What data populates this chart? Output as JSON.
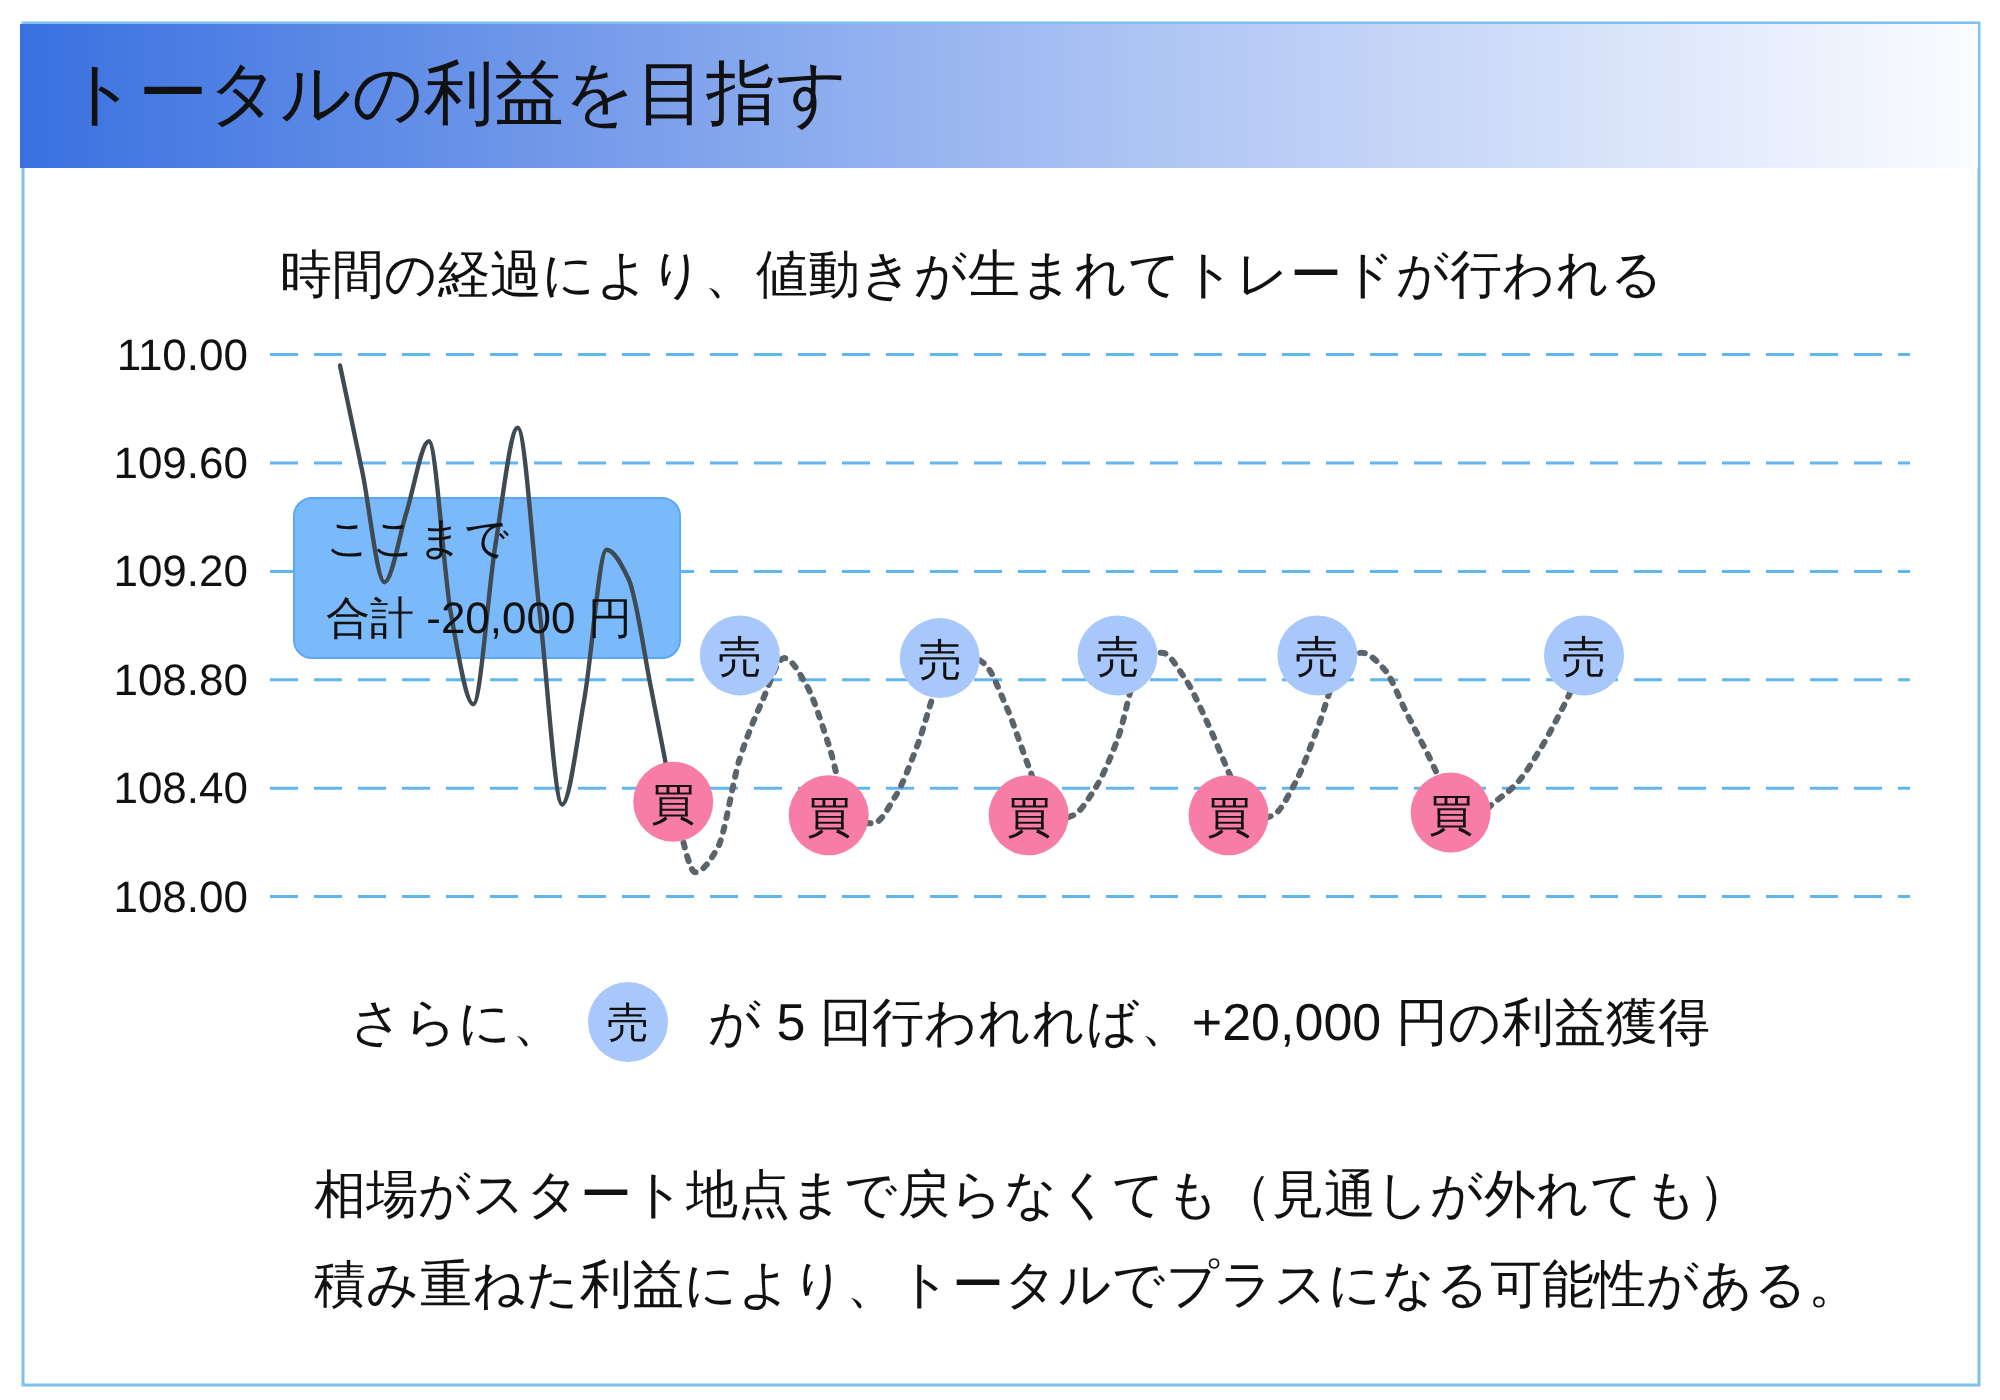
{
  "chart_data": {
    "type": "line",
    "title": "トータルの利益を目指す",
    "subtitle": "時間の経過により、値動きが生まれてトレードが行われる",
    "categories": [
      null,
      null,
      null,
      null,
      null,
      null,
      null,
      null,
      null,
      null,
      null,
      null,
      null,
      null,
      null,
      null,
      null,
      null,
      null,
      null,
      null,
      null,
      null,
      null,
      null,
      null,
      null,
      null,
      null,
      null,
      null,
      null,
      null,
      null,
      null,
      null,
      null,
      null,
      null,
      null,
      null,
      null,
      null,
      null,
      null,
      null,
      null,
      null,
      null,
      null,
      null,
      null,
      null,
      null,
      null,
      null,
      null
    ],
    "ylim": [
      108,
      110
    ],
    "yticks": [
      {
        "value": 108,
        "label": "108.00"
      },
      {
        "value": 108.4,
        "label": "108.40"
      },
      {
        "value": 108.8,
        "label": "108.80"
      },
      {
        "value": 109.2,
        "label": "109.20"
      },
      {
        "value": 109.6,
        "label": "109.60"
      },
      {
        "value": 110,
        "label": "110.00"
      }
    ],
    "grid": "y",
    "series": [
      {
        "line_style": "solid",
        "color": "#3f4a52",
        "values": [
          109.96,
          109.57,
          109.16,
          109.42,
          109.68,
          109.04,
          108.71,
          109.3,
          109.73,
          109.04,
          108.34,
          108.73,
          109.28,
          109.17,
          108.77,
          108.35,
          null,
          null,
          null,
          null,
          null,
          null,
          null,
          null,
          null,
          null,
          null,
          null,
          null,
          null,
          null,
          null,
          null,
          null,
          null,
          null,
          null,
          null,
          null,
          null,
          null,
          null,
          null,
          null,
          null,
          null,
          null,
          null,
          null,
          null,
          null,
          null,
          null,
          null,
          null,
          null,
          null
        ]
      },
      {
        "line_style": "dotted",
        "color": "#5b636b",
        "values": [
          null,
          null,
          null,
          null,
          null,
          null,
          null,
          null,
          null,
          null,
          null,
          null,
          null,
          null,
          null,
          108.35,
          108.09,
          108.18,
          108.51,
          108.72,
          108.88,
          108.78,
          108.56,
          108.29,
          108.27,
          108.37,
          108.56,
          108.8,
          108.9,
          108.86,
          108.7,
          108.48,
          108.28,
          108.3,
          108.4,
          108.58,
          108.85,
          108.9,
          108.81,
          108.65,
          108.46,
          108.28,
          108.3,
          108.42,
          108.62,
          108.84,
          108.9,
          108.84,
          108.68,
          108.52,
          108.36,
          108.29,
          108.35,
          108.42,
          108.54,
          108.69,
          108.86
        ]
      },
      {
        "type": "scatter",
        "marker": "circle",
        "color": "#f77ca6",
        "values": [
          null,
          null,
          null,
          null,
          null,
          null,
          null,
          null,
          null,
          null,
          null,
          null,
          null,
          null,
          null,
          108.35,
          null,
          null,
          null,
          null,
          null,
          null,
          108.3,
          null,
          null,
          null,
          null,
          null,
          null,
          null,
          null,
          108.3,
          null,
          null,
          null,
          null,
          null,
          null,
          null,
          null,
          108.3,
          null,
          null,
          null,
          null,
          null,
          null,
          null,
          null,
          null,
          108.31,
          null,
          null,
          null,
          null,
          null,
          null
        ],
        "value_labels": [
          null,
          null,
          null,
          null,
          null,
          null,
          null,
          null,
          null,
          null,
          null,
          null,
          null,
          null,
          null,
          "買",
          null,
          null,
          null,
          null,
          null,
          null,
          "買",
          null,
          null,
          null,
          null,
          null,
          null,
          null,
          null,
          "買",
          null,
          null,
          null,
          null,
          null,
          null,
          null,
          null,
          "買",
          null,
          null,
          null,
          null,
          null,
          null,
          null,
          null,
          null,
          "買",
          null,
          null,
          null,
          null,
          null,
          null
        ]
      },
      {
        "type": "scatter",
        "marker": "circle",
        "color": "#a8c8fb",
        "values": [
          null,
          null,
          null,
          null,
          null,
          null,
          null,
          null,
          null,
          null,
          null,
          null,
          null,
          null,
          null,
          null,
          null,
          null,
          108.89,
          null,
          null,
          null,
          null,
          null,
          null,
          null,
          null,
          108.88,
          null,
          null,
          null,
          null,
          null,
          null,
          null,
          108.89,
          null,
          null,
          null,
          null,
          null,
          null,
          null,
          null,
          108.89,
          null,
          null,
          null,
          null,
          null,
          null,
          null,
          null,
          null,
          null,
          null,
          108.89
        ],
        "value_labels": [
          null,
          null,
          null,
          null,
          null,
          null,
          null,
          null,
          null,
          null,
          null,
          null,
          null,
          null,
          null,
          null,
          null,
          null,
          "売",
          null,
          null,
          null,
          null,
          null,
          null,
          null,
          null,
          "売",
          null,
          null,
          null,
          null,
          null,
          null,
          null,
          "売",
          null,
          null,
          null,
          null,
          null,
          null,
          null,
          null,
          "売",
          null,
          null,
          null,
          null,
          null,
          null,
          null,
          null,
          null,
          null,
          null,
          "売"
        ]
      }
    ],
    "annotations": [
      "ここまで",
      "合計 -20,000 円",
      "さらに、",
      "売",
      "が 5 回行われれば、+20,000 円の利益獲得",
      "相場がスタート地点まで戻らなくても（見通しが外れても）",
      "積み重ねた利益により、トータルでプラスになる可能性がある。"
    ]
  }
}
